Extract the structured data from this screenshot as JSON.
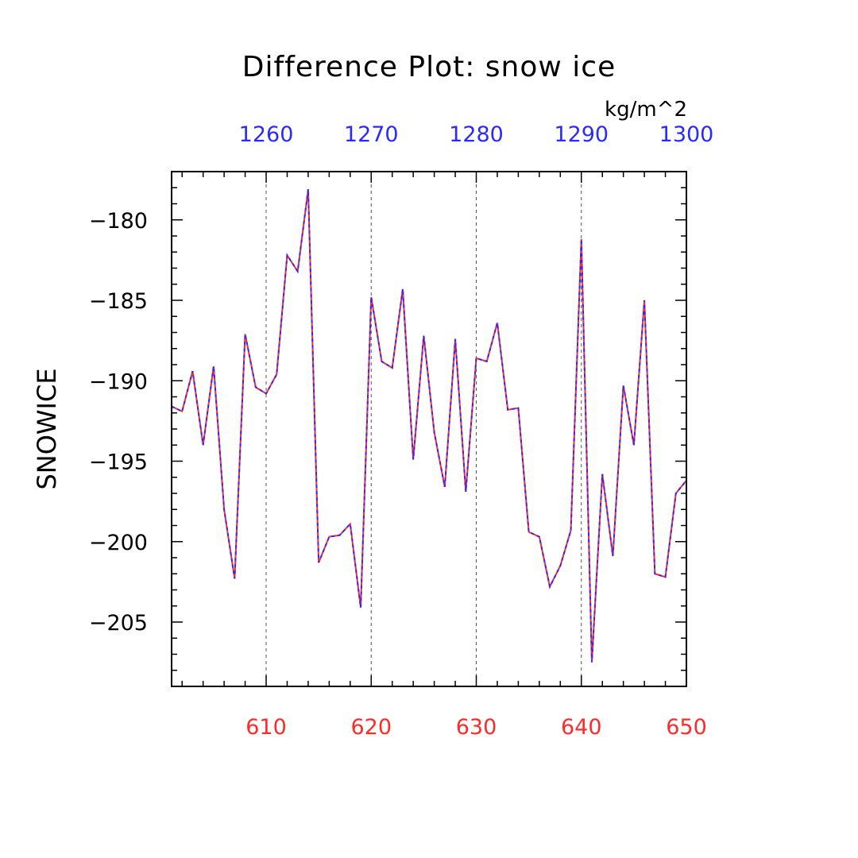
{
  "chart_data": {
    "type": "line",
    "title": "Difference Plot: snow ice",
    "units": "kg/m^2",
    "ylabel": "SNOWICE",
    "xlim": [
      601,
      650
    ],
    "top_xlim": [
      1251,
      1300
    ],
    "ylim": [
      -209,
      -177
    ],
    "yticks": [
      -180,
      -185,
      -190,
      -195,
      -200,
      -205
    ],
    "ytick_labels": [
      "−180",
      "−185",
      "−190",
      "−195",
      "−200",
      "−205"
    ],
    "xticks": [
      610,
      620,
      630,
      640,
      650
    ],
    "xtick_labels": [
      "610",
      "620",
      "630",
      "640",
      "650"
    ],
    "top_xticks": [
      1260,
      1270,
      1280,
      1290,
      1300
    ],
    "top_xtick_labels": [
      "1260",
      "1270",
      "1280",
      "1290",
      "1300"
    ],
    "grid": "vertical dashed lines at major bottom ticks",
    "colors": {
      "bottom_axis_labels": "#ff2a2a",
      "top_axis_labels": "#2a2aff",
      "series_solid": "#ff2a2a",
      "series_dashed": "#2a2aff"
    },
    "x": [
      601,
      602,
      603,
      604,
      605,
      606,
      607,
      608,
      609,
      610,
      611,
      612,
      613,
      614,
      615,
      616,
      617,
      618,
      619,
      620,
      621,
      622,
      623,
      624,
      625,
      626,
      627,
      628,
      629,
      630,
      631,
      632,
      633,
      634,
      635,
      636,
      637,
      638,
      639,
      640,
      641,
      642,
      643,
      644,
      645,
      646,
      647,
      648,
      649,
      650
    ],
    "series": [
      {
        "values": [
          -191.6,
          -191.9,
          -189.4,
          -194.0,
          -189.1,
          -198.0,
          -202.3,
          -187.1,
          -190.4,
          -190.8,
          -189.6,
          -182.2,
          -183.2,
          -178.1,
          -201.3,
          -199.7,
          -199.6,
          -198.9,
          -204.1,
          -184.8,
          -188.8,
          -189.2,
          -184.3,
          -194.9,
          -187.2,
          -193.2,
          -196.6,
          -187.4,
          -196.9,
          -188.6,
          -188.8,
          -186.4,
          -191.8,
          -191.7,
          -199.4,
          -199.7,
          -202.8,
          -201.5,
          -199.3,
          -181.2,
          -207.5,
          -195.8,
          -200.9,
          -190.3,
          -194.0,
          -185.0,
          -202.0,
          -202.2,
          -197.0,
          -196.2
        ]
      }
    ]
  }
}
